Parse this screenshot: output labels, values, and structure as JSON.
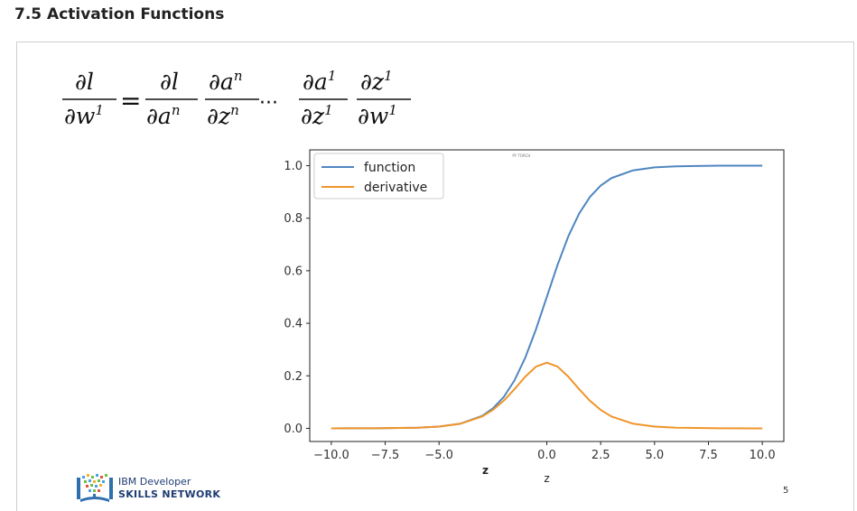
{
  "heading": "7.5 Activation Functions",
  "formula": {
    "lhs_num": "∂l",
    "lhs_den": "∂w",
    "lhs_den_sup": "1",
    "equals": "=",
    "t1_num": "∂l",
    "t1_den": "∂a",
    "t1_den_sup": "n",
    "t2_num": "∂a",
    "t2_num_sup": "n",
    "t2_den": "∂z",
    "t2_den_sup": "n",
    "ellipsis": "···",
    "t3_num": "∂a",
    "t3_num_sup": "1",
    "t3_den": "∂z",
    "t3_den_sup": "1",
    "t4_num": "∂z",
    "t4_num_sup": "1",
    "t4_den": "∂w",
    "t4_den_sup": "1"
  },
  "chart_data": {
    "type": "line",
    "title": "",
    "xlabel": "z",
    "extra_xlabel": "z",
    "ylabel": "",
    "xlim": [
      -11.0,
      11.0
    ],
    "ylim": [
      -0.05,
      1.06
    ],
    "xticks": [
      -10.0,
      -7.5,
      -5.0,
      0.0,
      2.5,
      5.0,
      7.5,
      10.0
    ],
    "xtick_labels": [
      "−10.0",
      "−7.5",
      "−5.0",
      "0.0",
      "2.5",
      "5.0",
      "7.5",
      "10.0"
    ],
    "yticks": [
      0.0,
      0.2,
      0.4,
      0.6,
      0.8,
      1.0
    ],
    "ytick_labels": [
      "0.0",
      "0.2",
      "0.4",
      "0.6",
      "0.8",
      "1.0"
    ],
    "legend_position": "top-left",
    "grid": false,
    "note": "PY TORCH",
    "series": [
      {
        "name": "function",
        "color": "#4f86c0",
        "x": [
          -10,
          -8,
          -6,
          -5,
          -4,
          -3,
          -2.5,
          -2,
          -1.5,
          -1,
          -0.5,
          0,
          0.5,
          1,
          1.5,
          2,
          2.5,
          3,
          4,
          5,
          6,
          8,
          10
        ],
        "y": [
          0.0,
          0.0003,
          0.0025,
          0.0067,
          0.018,
          0.0474,
          0.0759,
          0.1192,
          0.1824,
          0.2689,
          0.3775,
          0.5,
          0.6225,
          0.7311,
          0.8176,
          0.8808,
          0.9241,
          0.9526,
          0.982,
          0.9933,
          0.9975,
          0.9997,
          1.0
        ]
      },
      {
        "name": "derivative",
        "color": "#f0952a",
        "x": [
          -10,
          -8,
          -6,
          -5,
          -4,
          -3,
          -2.5,
          -2,
          -1.5,
          -1,
          -0.5,
          0,
          0.5,
          1,
          1.5,
          2,
          2.5,
          3,
          4,
          5,
          6,
          8,
          10
        ],
        "y": [
          0.0,
          0.0003,
          0.0025,
          0.0066,
          0.0177,
          0.0452,
          0.0701,
          0.105,
          0.1491,
          0.1966,
          0.235,
          0.25,
          0.235,
          0.1966,
          0.1491,
          0.105,
          0.0701,
          0.0452,
          0.0177,
          0.0066,
          0.0025,
          0.0003,
          0.0
        ]
      }
    ]
  },
  "logo": {
    "line1": "IBM Developer",
    "line2": "SKILLS NETWORK"
  },
  "page_number": "5"
}
